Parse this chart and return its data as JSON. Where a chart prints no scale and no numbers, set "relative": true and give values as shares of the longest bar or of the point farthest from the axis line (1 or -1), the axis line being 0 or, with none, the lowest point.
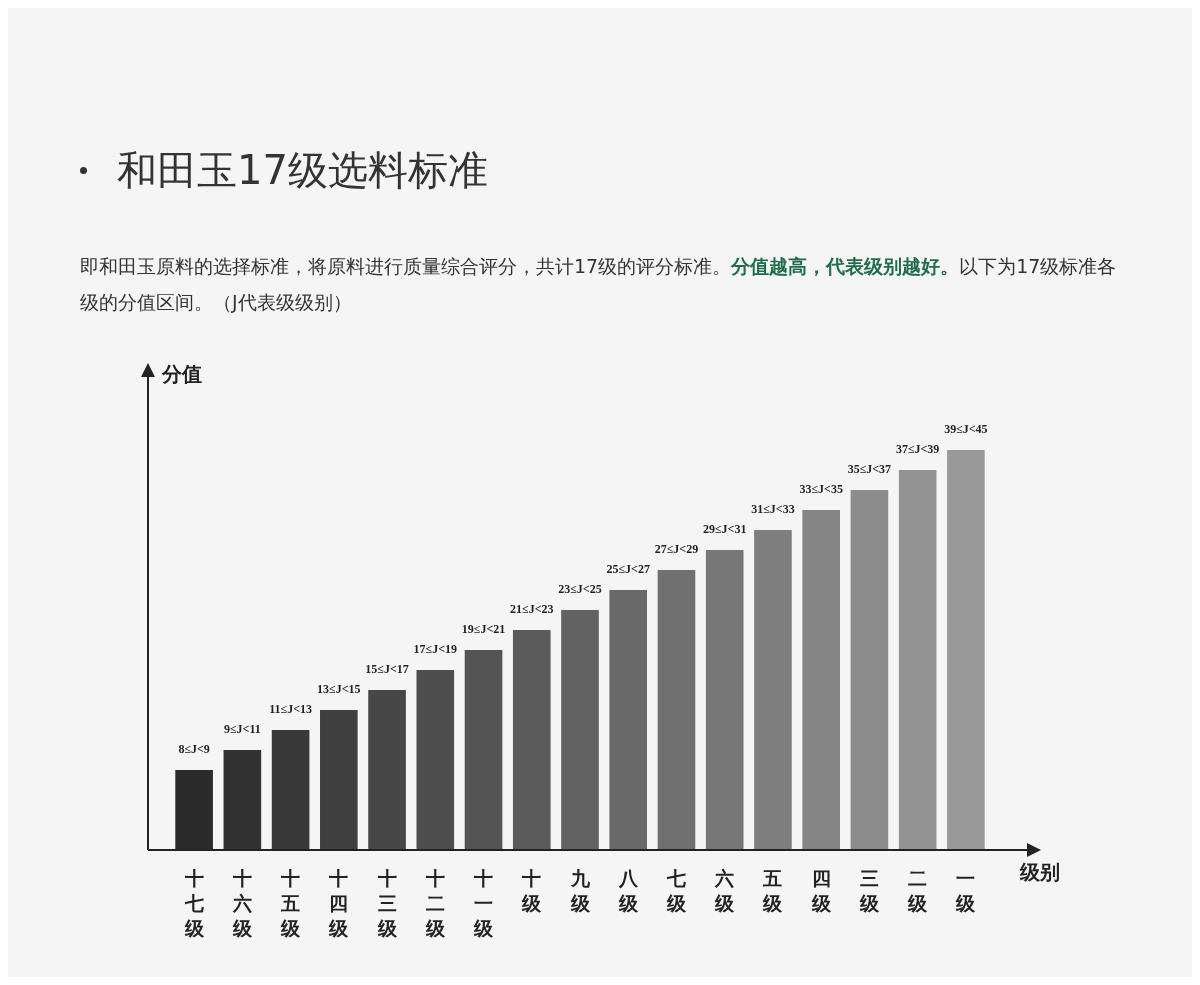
{
  "chart_data": {
    "type": "bar",
    "title": "和田玉17级选料标准",
    "subtitle": "即和田玉原料的选择标准，将原料进行质量综合评分，共计17级的评分标准。",
    "ylabel": "分值",
    "xlabel": "级别",
    "relative": true,
    "annotations": [
      "分值越高，代表级别越好。",
      "以下为17级标准各级的分值区间。（J代表级级别）",
      {
        "text": "8≤J<9",
        "x": "十七级",
        "y": 0.2
      },
      {
        "text": "9≤J<11",
        "x": "十六级",
        "y": 0.25
      },
      {
        "text": "11≤J<13",
        "x": "十五级",
        "y": 0.3
      },
      {
        "text": "13≤J<15",
        "x": "十四级",
        "y": 0.35
      },
      {
        "text": "15≤J<17",
        "x": "十三级",
        "y": 0.4
      },
      {
        "text": "17≤J<19",
        "x": "十二级",
        "y": 0.45
      },
      {
        "text": "19≤J<21",
        "x": "十一级",
        "y": 0.5
      },
      {
        "text": "21≤J<23",
        "x": "十级",
        "y": 0.55
      },
      {
        "text": "23≤J<25",
        "x": "九级",
        "y": 0.6
      },
      {
        "text": "25≤J<27",
        "x": "八级",
        "y": 0.65
      },
      {
        "text": "27≤J<29",
        "x": "七级",
        "y": 0.7
      },
      {
        "text": "29≤J<31",
        "x": "六级",
        "y": 0.75
      },
      {
        "text": "31≤J<33",
        "x": "五级",
        "y": 0.8
      },
      {
        "text": "33≤J<35",
        "x": "四级",
        "y": 0.85
      },
      {
        "text": "35≤J<37",
        "x": "三级",
        "y": 0.9
      },
      {
        "text": "37≤J<39",
        "x": "二级",
        "y": 0.95
      },
      {
        "text": "39≤J<45",
        "x": "一级",
        "y": 1
      }
    ],
    "categories": [
      "十七级",
      "十六级",
      "十五级",
      "十四级",
      "十三级",
      "十二级",
      "十一级",
      "十级",
      "九级",
      "八级",
      "七级",
      "六级",
      "五级",
      "四级",
      "三级",
      "二级",
      "一级"
    ],
    "values": [
      0.2,
      0.25,
      0.3,
      0.35,
      0.4,
      0.45,
      0.5,
      0.55,
      0.6,
      0.65,
      0.7,
      0.75,
      0.8,
      0.85,
      0.9,
      0.95,
      1
    ],
    "colors": [
      "#2b2b2b",
      "#323232",
      "#393939",
      "#404040",
      "#474747",
      "#4e4e4e",
      "#545454",
      "#5b5b5b",
      "#626262",
      "#696969",
      "#707070",
      "#777777",
      "#7e7e7e",
      "#858585",
      "#8c8c8c",
      "#939393",
      "#999999"
    ],
    "grid": false,
    "legend": false
  }
}
